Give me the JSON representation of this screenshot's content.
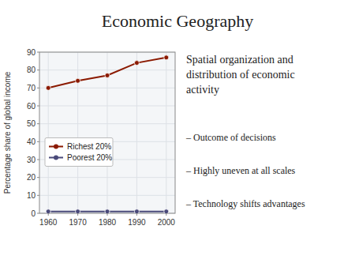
{
  "chart_data": {
    "type": "line",
    "title": "Economic Geography",
    "ylabel": "Percentage share of global income",
    "x": [
      1960,
      1970,
      1980,
      1990,
      2000
    ],
    "series": [
      {
        "name": "Richest 20%",
        "color": "#8b1a00",
        "marker": "circle",
        "values": [
          70,
          74,
          77,
          84,
          87
        ]
      },
      {
        "name": "Poorest 20%",
        "color": "#4a4a7a",
        "marker": "circle",
        "values": [
          1,
          1,
          1,
          1,
          1
        ]
      }
    ],
    "xlim": [
      1957,
      2003
    ],
    "xticks": [
      1960,
      1970,
      1980,
      1990,
      2000
    ],
    "ylim": [
      0,
      90
    ],
    "yticks": [
      0,
      10,
      20,
      30,
      40,
      50,
      60,
      70,
      80,
      90
    ],
    "grid": true,
    "legend": "left",
    "annotations": [
      "Spatial organization and",
      "distribution of economic",
      "activity",
      "–  Outcome of decisions",
      "–  Highly uneven at all scales",
      "–  Technology shifts advantages"
    ]
  }
}
